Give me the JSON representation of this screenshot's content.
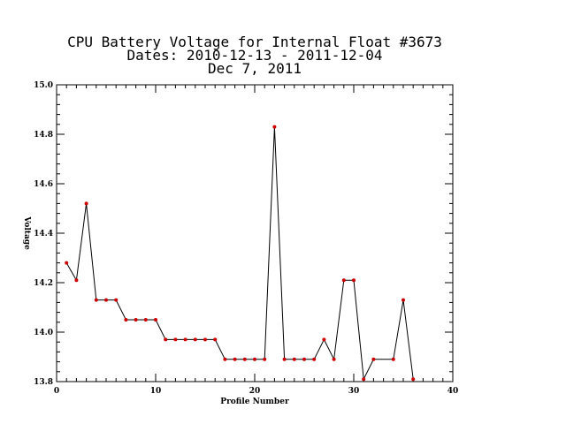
{
  "chart_data": {
    "type": "line",
    "title_lines": [
      "CPU Battery Voltage for Internal Float #3673",
      "Dates:  2010-12-13 -  2011-12-04",
      "Dec  7, 2011"
    ],
    "xlabel": "Profile Number",
    "ylabel": "Voltage",
    "xlim": [
      0,
      40
    ],
    "ylim": [
      13.8,
      15.0
    ],
    "x_ticks": [
      0,
      10,
      20,
      30,
      40
    ],
    "x_tick_labels": [
      "0",
      "10",
      "20",
      "30",
      "40"
    ],
    "y_ticks": [
      13.8,
      14.0,
      14.2,
      14.4,
      14.6,
      14.8,
      15.0
    ],
    "y_tick_labels": [
      "13.8",
      "14.0",
      "14.2",
      "14.4",
      "14.6",
      "14.8",
      "15.0"
    ],
    "x_minor_step": 1,
    "y_minor_step": 0.04,
    "grid": false,
    "line_color": "#000000",
    "marker_color": "#cc0000",
    "series": [
      {
        "x": [
          1,
          2,
          3,
          4,
          5,
          6,
          7,
          8,
          9,
          10,
          11,
          12,
          13,
          14,
          15,
          16,
          17,
          18,
          19,
          20,
          21,
          22,
          23,
          24,
          25,
          26,
          27,
          28,
          29,
          30,
          31,
          32,
          34,
          35,
          36
        ],
        "y": [
          14.28,
          14.21,
          14.52,
          14.13,
          14.13,
          14.13,
          14.05,
          14.05,
          14.05,
          14.05,
          13.97,
          13.97,
          13.97,
          13.97,
          13.97,
          13.97,
          13.89,
          13.89,
          13.89,
          13.89,
          13.89,
          14.83,
          13.89,
          13.89,
          13.89,
          13.89,
          13.97,
          13.89,
          14.21,
          14.21,
          13.81,
          13.89,
          13.89,
          14.13,
          13.81
        ]
      }
    ]
  }
}
